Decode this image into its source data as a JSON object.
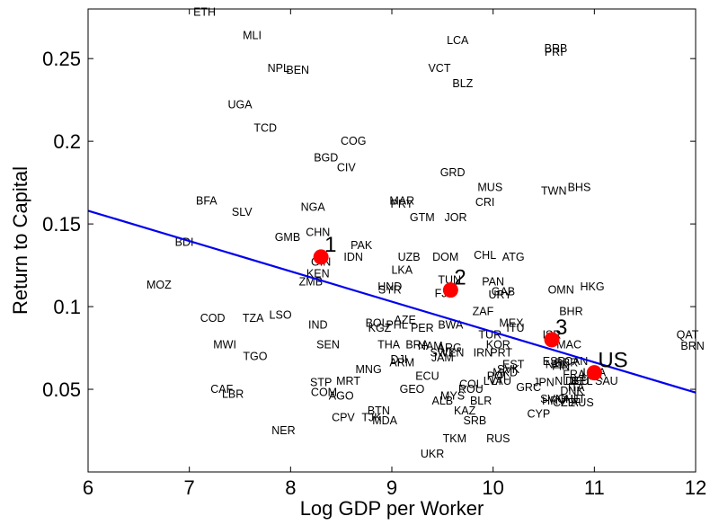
{
  "chart_data": {
    "type": "scatter",
    "xlabel": "Log GDP per Worker",
    "ylabel": "Return to Capital",
    "xlim": [
      6,
      12
    ],
    "ylim": [
      0.0,
      0.28
    ],
    "xticks": [
      6,
      7,
      8,
      9,
      10,
      11,
      12
    ],
    "yticks": [
      0.05,
      0.1,
      0.15,
      0.2,
      0.25
    ],
    "ytick_labels": [
      "0.05",
      "0.1",
      "0.15",
      "0.2",
      "0.25"
    ],
    "grid": false,
    "fit_line": {
      "x": [
        6,
        12
      ],
      "y": [
        0.158,
        0.048
      ],
      "color": "#0000ee"
    },
    "marker_color": "#ff0000",
    "highlighted": [
      {
        "label": "1",
        "x": 8.3,
        "y": 0.13
      },
      {
        "label": "2",
        "x": 9.58,
        "y": 0.11
      },
      {
        "label": "3",
        "x": 10.58,
        "y": 0.08
      },
      {
        "label": "US",
        "x": 11.0,
        "y": 0.06
      }
    ],
    "countries": [
      {
        "label": "ETH",
        "x": 7.15,
        "y": 0.278
      },
      {
        "label": "MLI",
        "x": 7.62,
        "y": 0.264
      },
      {
        "label": "LCA",
        "x": 9.65,
        "y": 0.261
      },
      {
        "label": "BRB",
        "x": 10.62,
        "y": 0.256
      },
      {
        "label": "PRI",
        "x": 10.6,
        "y": 0.254
      },
      {
        "label": "NPL",
        "x": 7.88,
        "y": 0.244
      },
      {
        "label": "BEN",
        "x": 8.07,
        "y": 0.243
      },
      {
        "label": "VCT",
        "x": 9.47,
        "y": 0.244
      },
      {
        "label": "BLZ",
        "x": 9.7,
        "y": 0.235
      },
      {
        "label": "UGA",
        "x": 7.5,
        "y": 0.222
      },
      {
        "label": "TCD",
        "x": 7.75,
        "y": 0.208
      },
      {
        "label": "COG",
        "x": 8.62,
        "y": 0.2
      },
      {
        "label": "BGD",
        "x": 8.35,
        "y": 0.19
      },
      {
        "label": "CIV",
        "x": 8.55,
        "y": 0.184
      },
      {
        "label": "GRD",
        "x": 9.6,
        "y": 0.181
      },
      {
        "label": "MUS",
        "x": 9.97,
        "y": 0.172
      },
      {
        "label": "TWN",
        "x": 10.6,
        "y": 0.17
      },
      {
        "label": "BHS",
        "x": 10.85,
        "y": 0.172
      },
      {
        "label": "BFA",
        "x": 7.17,
        "y": 0.164
      },
      {
        "label": "MAR",
        "x": 9.1,
        "y": 0.164
      },
      {
        "label": "PRY",
        "x": 9.1,
        "y": 0.162
      },
      {
        "label": "CRI",
        "x": 9.92,
        "y": 0.163
      },
      {
        "label": "NGA",
        "x": 8.22,
        "y": 0.16
      },
      {
        "label": "SLV",
        "x": 7.52,
        "y": 0.157
      },
      {
        "label": "GTM",
        "x": 9.3,
        "y": 0.154
      },
      {
        "label": "JOR",
        "x": 9.63,
        "y": 0.154
      },
      {
        "label": "CHN",
        "x": 8.27,
        "y": 0.145
      },
      {
        "label": "BDI",
        "x": 6.95,
        "y": 0.139
      },
      {
        "label": "GMB",
        "x": 7.97,
        "y": 0.142
      },
      {
        "label": "PAK",
        "x": 8.7,
        "y": 0.137
      },
      {
        "label": "IDN",
        "x": 8.62,
        "y": 0.13
      },
      {
        "label": "UZB",
        "x": 9.17,
        "y": 0.13
      },
      {
        "label": "DOM",
        "x": 9.53,
        "y": 0.13
      },
      {
        "label": "CHL",
        "x": 9.92,
        "y": 0.131
      },
      {
        "label": "ATG",
        "x": 10.2,
        "y": 0.13
      },
      {
        "label": "GIN",
        "x": 8.3,
        "y": 0.127
      },
      {
        "label": "KEN",
        "x": 8.27,
        "y": 0.12
      },
      {
        "label": "LKA",
        "x": 9.1,
        "y": 0.122
      },
      {
        "label": "ZMB",
        "x": 8.2,
        "y": 0.115
      },
      {
        "label": "TUN",
        "x": 9.57,
        "y": 0.116
      },
      {
        "label": "PAN",
        "x": 10.0,
        "y": 0.115
      },
      {
        "label": "MOZ",
        "x": 6.7,
        "y": 0.113
      },
      {
        "label": "HND",
        "x": 8.98,
        "y": 0.112
      },
      {
        "label": "SYR",
        "x": 8.98,
        "y": 0.11
      },
      {
        "label": "FJI",
        "x": 9.5,
        "y": 0.108
      },
      {
        "label": "GAB",
        "x": 10.1,
        "y": 0.109
      },
      {
        "label": "URY",
        "x": 10.07,
        "y": 0.107
      },
      {
        "label": "OMN",
        "x": 10.67,
        "y": 0.11
      },
      {
        "label": "HKG",
        "x": 10.98,
        "y": 0.112
      },
      {
        "label": "ZAF",
        "x": 9.9,
        "y": 0.097
      },
      {
        "label": "BHR",
        "x": 10.77,
        "y": 0.097
      },
      {
        "label": "COD",
        "x": 7.23,
        "y": 0.093
      },
      {
        "label": "TZA",
        "x": 7.63,
        "y": 0.093
      },
      {
        "label": "LSO",
        "x": 7.9,
        "y": 0.095
      },
      {
        "label": "AZE",
        "x": 9.13,
        "y": 0.092
      },
      {
        "label": "BOL",
        "x": 8.85,
        "y": 0.09
      },
      {
        "label": "PHL",
        "x": 9.05,
        "y": 0.089
      },
      {
        "label": "IND",
        "x": 8.27,
        "y": 0.089
      },
      {
        "label": "KGZ",
        "x": 8.88,
        "y": 0.087
      },
      {
        "label": "PER",
        "x": 9.3,
        "y": 0.087
      },
      {
        "label": "BWA",
        "x": 9.58,
        "y": 0.089
      },
      {
        "label": "MEX",
        "x": 10.18,
        "y": 0.09
      },
      {
        "label": "ITU",
        "x": 10.22,
        "y": 0.087
      },
      {
        "label": "TUR",
        "x": 9.97,
        "y": 0.083
      },
      {
        "label": "ISR",
        "x": 10.58,
        "y": 0.083
      },
      {
        "label": "QAT",
        "x": 11.92,
        "y": 0.083
      },
      {
        "label": "MWI",
        "x": 7.35,
        "y": 0.077
      },
      {
        "label": "SEN",
        "x": 8.37,
        "y": 0.077
      },
      {
        "label": "THA",
        "x": 8.97,
        "y": 0.077
      },
      {
        "label": "BRA",
        "x": 9.25,
        "y": 0.077
      },
      {
        "label": "NAM",
        "x": 9.38,
        "y": 0.076
      },
      {
        "label": "ARG",
        "x": 9.57,
        "y": 0.075
      },
      {
        "label": "KOR",
        "x": 10.05,
        "y": 0.077
      },
      {
        "label": "MAC",
        "x": 10.75,
        "y": 0.077
      },
      {
        "label": "BRN",
        "x": 11.97,
        "y": 0.076
      },
      {
        "label": "IRN",
        "x": 9.9,
        "y": 0.072
      },
      {
        "label": "PRT",
        "x": 10.08,
        "y": 0.072
      },
      {
        "label": "SWZ",
        "x": 9.5,
        "y": 0.072
      },
      {
        "label": "VEN",
        "x": 9.6,
        "y": 0.072
      },
      {
        "label": "JAM",
        "x": 9.5,
        "y": 0.069
      },
      {
        "label": "TGO",
        "x": 7.65,
        "y": 0.07
      },
      {
        "label": "DJI",
        "x": 9.07,
        "y": 0.068
      },
      {
        "label": "ARM",
        "x": 9.1,
        "y": 0.066
      },
      {
        "label": "EST",
        "x": 10.2,
        "y": 0.065
      },
      {
        "label": "ESP",
        "x": 10.6,
        "y": 0.067
      },
      {
        "label": "GBR",
        "x": 10.72,
        "y": 0.066
      },
      {
        "label": "CAN",
        "x": 10.82,
        "y": 0.067
      },
      {
        "label": "NZL",
        "x": 10.62,
        "y": 0.065
      },
      {
        "label": "FIN",
        "x": 10.67,
        "y": 0.064
      },
      {
        "label": "SVK",
        "x": 10.15,
        "y": 0.062
      },
      {
        "label": "MNG",
        "x": 8.77,
        "y": 0.062
      },
      {
        "label": "FRA",
        "x": 10.8,
        "y": 0.059
      },
      {
        "label": "USA",
        "x": 11.0,
        "y": 0.06
      },
      {
        "label": "LUX",
        "x": 10.98,
        "y": 0.058
      },
      {
        "label": "SAU",
        "x": 11.12,
        "y": 0.055
      },
      {
        "label": "ECU",
        "x": 9.35,
        "y": 0.058
      },
      {
        "label": "MRT",
        "x": 8.57,
        "y": 0.055
      },
      {
        "label": "POL",
        "x": 10.05,
        "y": 0.058
      },
      {
        "label": "MKD",
        "x": 10.12,
        "y": 0.06
      },
      {
        "label": "LVA",
        "x": 10.0,
        "y": 0.055
      },
      {
        "label": "LTU",
        "x": 10.08,
        "y": 0.055
      },
      {
        "label": "JPN",
        "x": 10.5,
        "y": 0.054
      },
      {
        "label": "NLD",
        "x": 10.72,
        "y": 0.055
      },
      {
        "label": "DEU",
        "x": 10.83,
        "y": 0.055
      },
      {
        "label": "BEL",
        "x": 10.88,
        "y": 0.055
      },
      {
        "label": "STP",
        "x": 8.3,
        "y": 0.054
      },
      {
        "label": "COL",
        "x": 9.78,
        "y": 0.053
      },
      {
        "label": "GRC",
        "x": 10.35,
        "y": 0.051
      },
      {
        "label": "ITA",
        "x": 10.82,
        "y": 0.051
      },
      {
        "label": "DNK",
        "x": 10.78,
        "y": 0.049
      },
      {
        "label": "CAF",
        "x": 7.32,
        "y": 0.05
      },
      {
        "label": "GEO",
        "x": 9.2,
        "y": 0.05
      },
      {
        "label": "ROU",
        "x": 9.78,
        "y": 0.05
      },
      {
        "label": "COM",
        "x": 8.33,
        "y": 0.048
      },
      {
        "label": "AGO",
        "x": 8.5,
        "y": 0.046
      },
      {
        "label": "LBR",
        "x": 7.43,
        "y": 0.047
      },
      {
        "label": "MYS",
        "x": 9.6,
        "y": 0.046
      },
      {
        "label": "SVN",
        "x": 10.58,
        "y": 0.044
      },
      {
        "label": "HRV",
        "x": 10.6,
        "y": 0.043
      },
      {
        "label": "CHE",
        "x": 10.75,
        "y": 0.044
      },
      {
        "label": "AUT",
        "x": 10.8,
        "y": 0.044
      },
      {
        "label": "CZE",
        "x": 10.7,
        "y": 0.042
      },
      {
        "label": "AUS",
        "x": 10.88,
        "y": 0.042
      },
      {
        "label": "ALB",
        "x": 9.5,
        "y": 0.043
      },
      {
        "label": "BLR",
        "x": 9.88,
        "y": 0.043
      },
      {
        "label": "BTN",
        "x": 8.87,
        "y": 0.037
      },
      {
        "label": "KAZ",
        "x": 9.72,
        "y": 0.037
      },
      {
        "label": "CYP",
        "x": 10.45,
        "y": 0.035
      },
      {
        "label": "CPV",
        "x": 8.52,
        "y": 0.033
      },
      {
        "label": "TJK",
        "x": 8.8,
        "y": 0.033
      },
      {
        "label": "MDA",
        "x": 8.93,
        "y": 0.031
      },
      {
        "label": "SRB",
        "x": 9.82,
        "y": 0.031
      },
      {
        "label": "NER",
        "x": 7.93,
        "y": 0.025
      },
      {
        "label": "TKM",
        "x": 9.62,
        "y": 0.02
      },
      {
        "label": "RUS",
        "x": 10.05,
        "y": 0.02
      },
      {
        "label": "UKR",
        "x": 9.4,
        "y": 0.011
      }
    ]
  }
}
